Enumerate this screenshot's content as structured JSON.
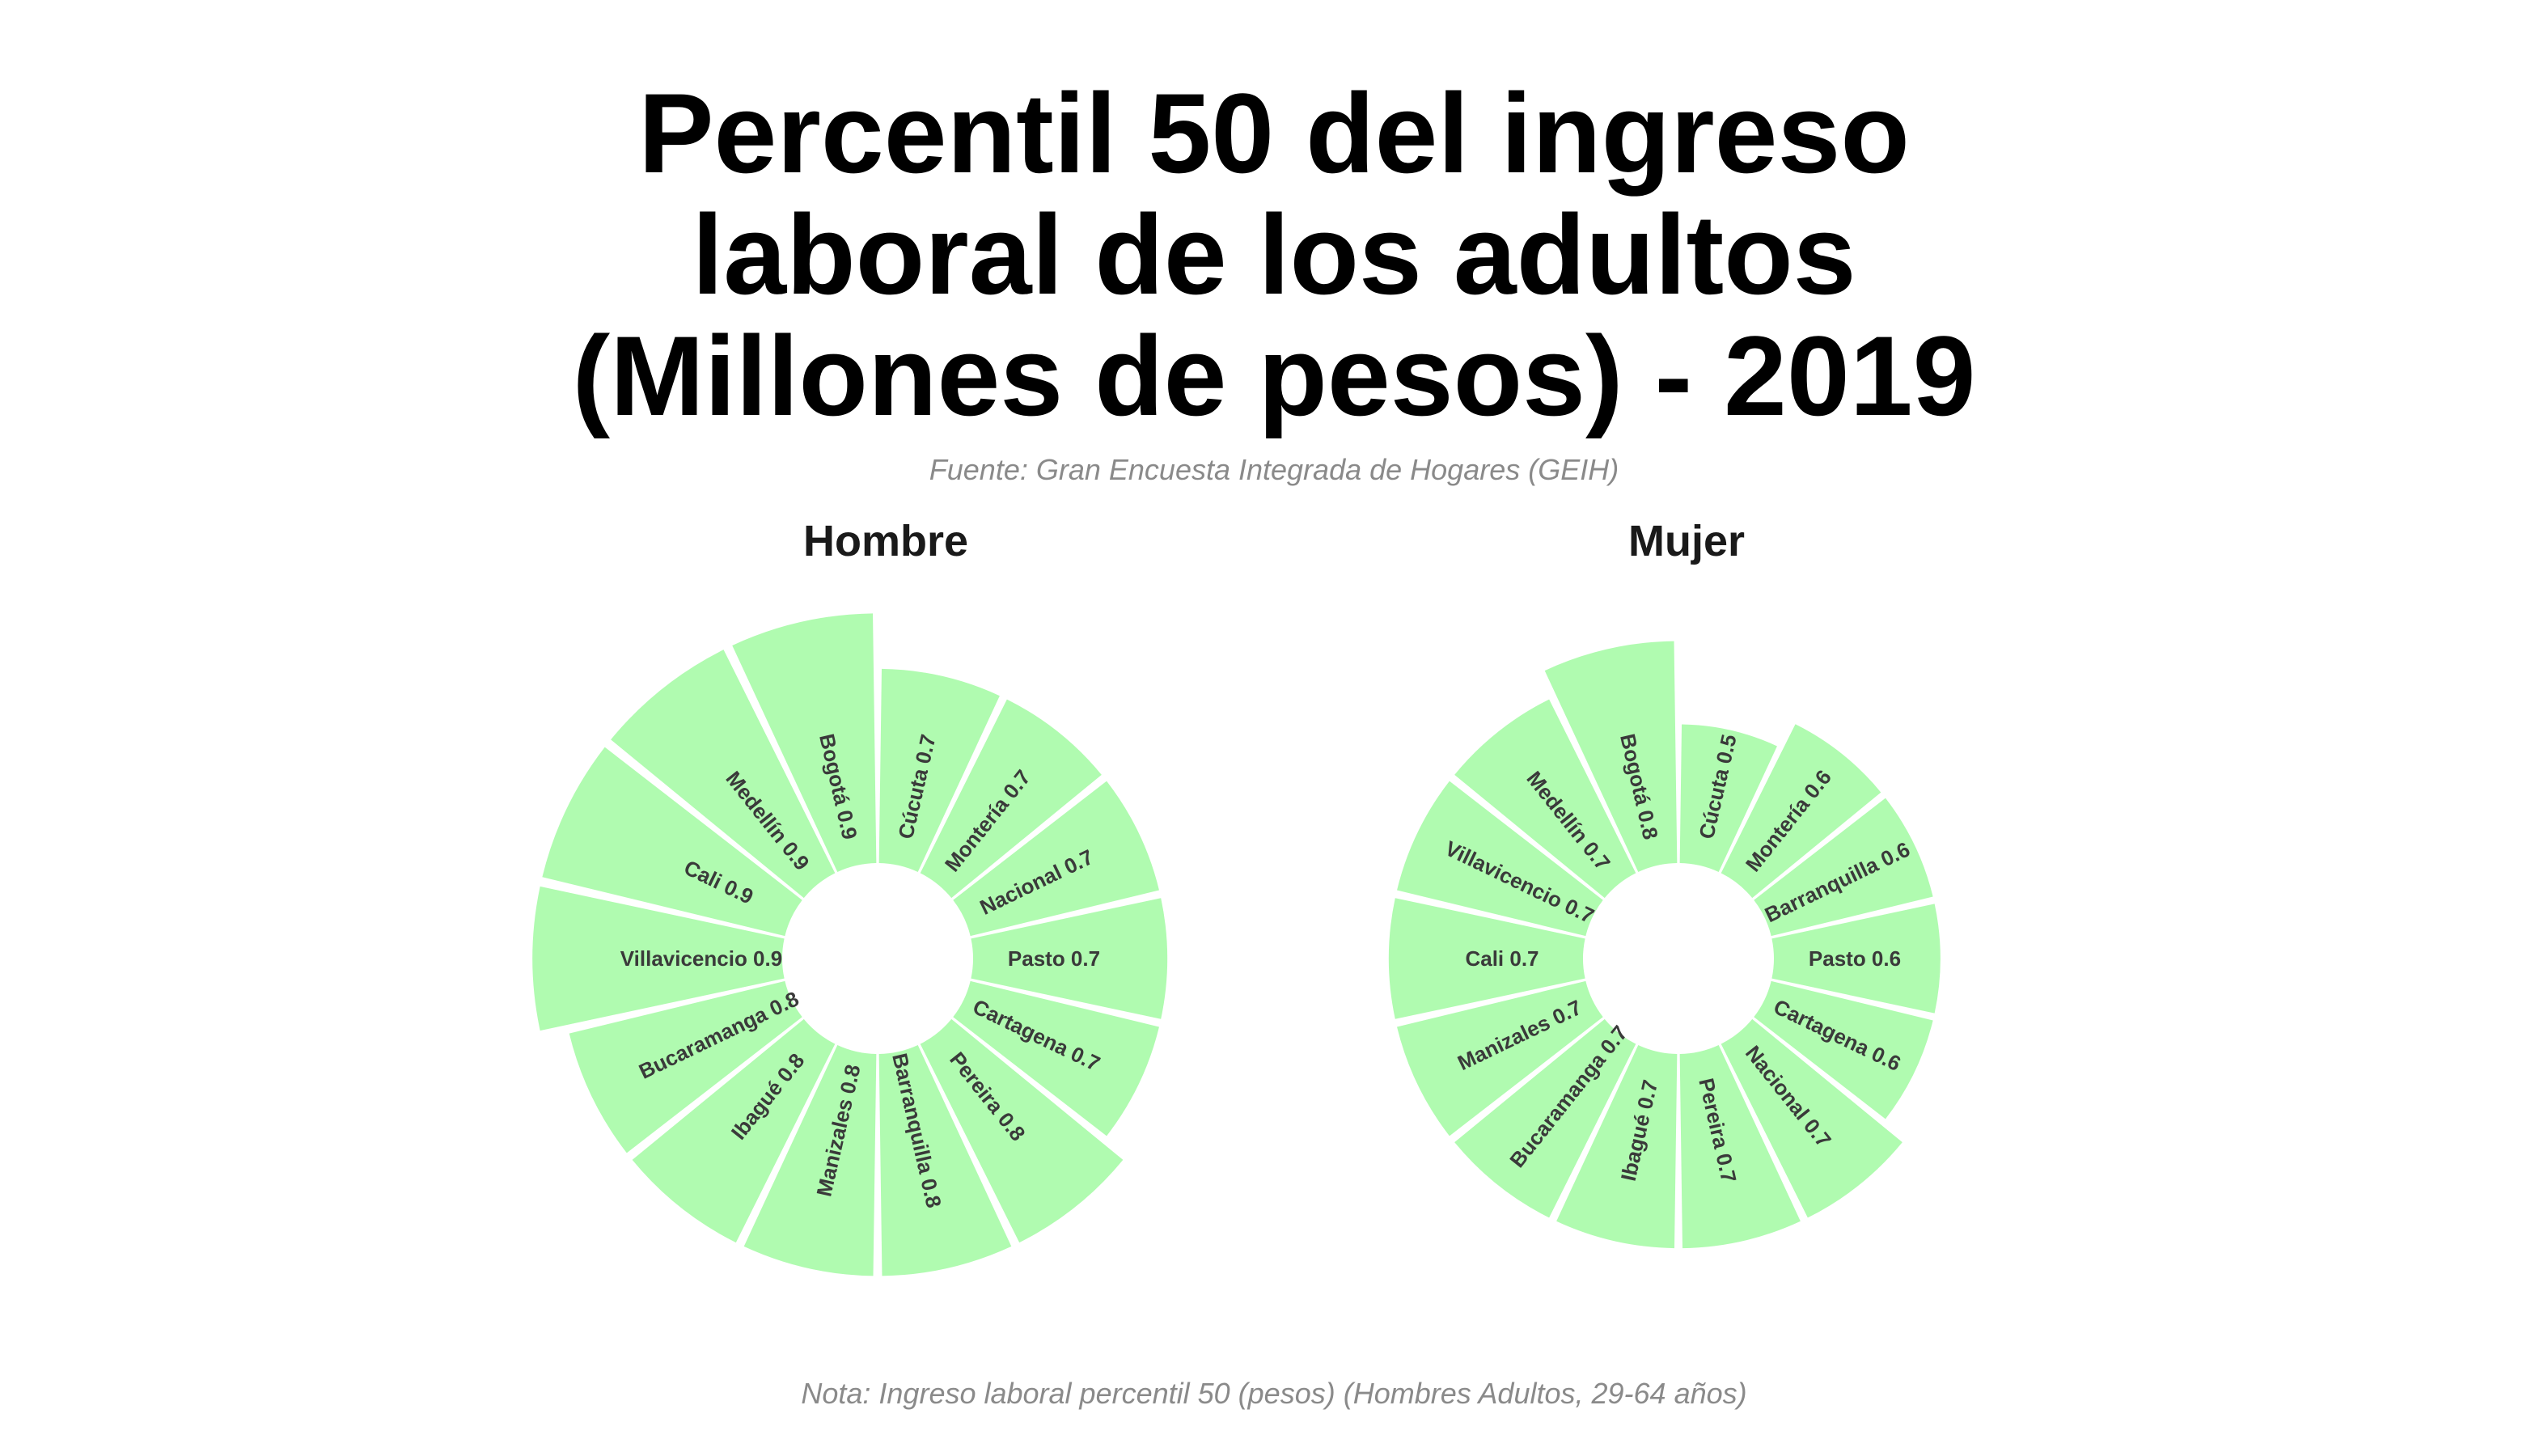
{
  "title": "Percentil 50 del ingreso laboral de los adultos (Millones de pesos) - 2019",
  "title_lines": [
    "Percentil 50 del ingreso",
    "laboral de los adultos",
    "(Millones de pesos) - 2019"
  ],
  "subtitle": "Fuente: Gran Encuesta Integrada de Hogares (GEIH)",
  "note": "Nota: Ingreso laboral percentil 50 (pesos) (Hombres Adultos, 29-64 años)",
  "colors": {
    "bar": "#b0fbb0",
    "label": "#3a3a3a"
  },
  "chart_data": [
    {
      "type": "bar",
      "coord": "polar",
      "panel": "Hombre",
      "categories": [
        "Cúcuta",
        "Montería",
        "Nacional",
        "Pasto",
        "Cartagena",
        "Pereira",
        "Barranquilla",
        "Manizales",
        "Ibagué",
        "Bucaramanga",
        "Villavicencio",
        "Cali",
        "Medellín",
        "Bogotá"
      ],
      "values": [
        0.7,
        0.7,
        0.7,
        0.7,
        0.7,
        0.8,
        0.8,
        0.8,
        0.8,
        0.8,
        0.9,
        0.9,
        0.9,
        0.9
      ],
      "labels": [
        "Cúcuta 0.7",
        "Montería 0.7",
        "Nacional 0.7",
        "Pasto 0.7",
        "Cartagena 0.7",
        "Pereira 0.8",
        "Barranquilla 0.8",
        "Manizales 0.8",
        "Ibagué 0.8",
        "Bucaramanga 0.8",
        "Villavicencio 0.9",
        "Cali 0.9",
        "Medellín 0.9",
        "Bogotá 0.9"
      ]
    },
    {
      "type": "bar",
      "coord": "polar",
      "panel": "Mujer",
      "categories": [
        "Cúcuta",
        "Montería",
        "Barranquilla",
        "Pasto",
        "Cartagena",
        "Nacional",
        "Pereira",
        "Ibagué",
        "Bucaramanga",
        "Manizales",
        "Cali",
        "Villavicencio",
        "Medellín",
        "Bogotá"
      ],
      "values": [
        0.5,
        0.6,
        0.6,
        0.6,
        0.6,
        0.7,
        0.7,
        0.7,
        0.7,
        0.7,
        0.7,
        0.7,
        0.7,
        0.8
      ],
      "labels": [
        "Cúcuta 0.5",
        "Montería 0.6",
        "Barranquilla 0.6",
        "Pasto 0.6",
        "Cartagena 0.6",
        "Nacional 0.7",
        "Pereira 0.7",
        "Ibagué 0.7",
        "Bucaramanga 0.7",
        "Manizales 0.7",
        "Cali 0.7",
        "Villavicencio 0.7",
        "Medellín 0.7",
        "Bogotá 0.8"
      ]
    }
  ]
}
